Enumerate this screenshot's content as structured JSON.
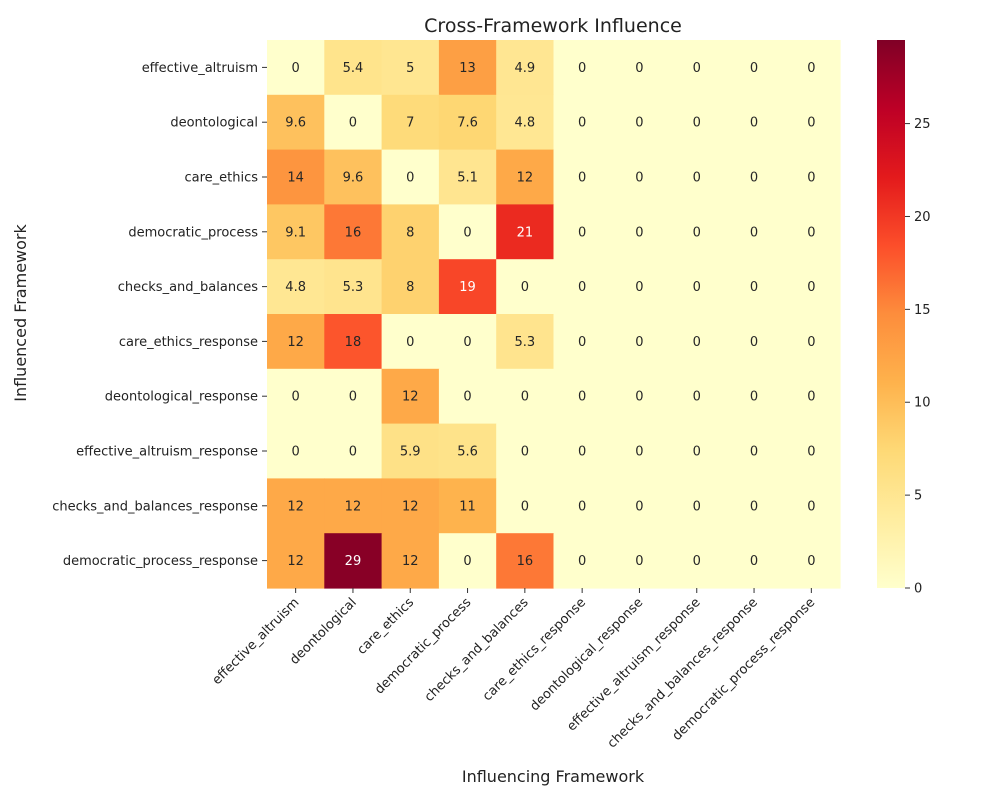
{
  "chart_data": {
    "type": "heatmap",
    "title": "Cross-Framework Influence",
    "xlabel": "Influencing Framework",
    "ylabel": "Influenced Framework",
    "x_categories": [
      "effective_altruism",
      "deontological",
      "care_ethics",
      "democratic_process",
      "checks_and_balances",
      "care_ethics_response",
      "deontological_response",
      "effective_altruism_response",
      "checks_and_balances_response",
      "democratic_process_response"
    ],
    "y_categories": [
      "effective_altruism",
      "deontological",
      "care_ethics",
      "democratic_process",
      "checks_and_balances",
      "care_ethics_response",
      "deontological_response",
      "effective_altruism_response",
      "checks_and_balances_response",
      "democratic_process_response"
    ],
    "values": [
      [
        0,
        5.4,
        5,
        13,
        4.9,
        0,
        0,
        0,
        0,
        0
      ],
      [
        9.6,
        0,
        7,
        7.6,
        4.8,
        0,
        0,
        0,
        0,
        0
      ],
      [
        14,
        9.6,
        0,
        5.1,
        12,
        0,
        0,
        0,
        0,
        0
      ],
      [
        9.1,
        16,
        8,
        0,
        21,
        0,
        0,
        0,
        0,
        0
      ],
      [
        4.8,
        5.3,
        8,
        19,
        0,
        0,
        0,
        0,
        0,
        0
      ],
      [
        12,
        18,
        0,
        0,
        5.3,
        0,
        0,
        0,
        0,
        0
      ],
      [
        0,
        0,
        12,
        0,
        0,
        0,
        0,
        0,
        0,
        0
      ],
      [
        0,
        0,
        5.9,
        5.6,
        0,
        0,
        0,
        0,
        0,
        0
      ],
      [
        12,
        12,
        12,
        11,
        0,
        0,
        0,
        0,
        0,
        0
      ],
      [
        12,
        29,
        12,
        0,
        16,
        0,
        0,
        0,
        0,
        0
      ]
    ],
    "colormap": "YlOrRd",
    "vmin": 0,
    "vmax": 29.5,
    "colorbar_ticks": [
      0,
      5,
      10,
      15,
      20,
      25
    ],
    "annotations": true,
    "grid": false
  }
}
